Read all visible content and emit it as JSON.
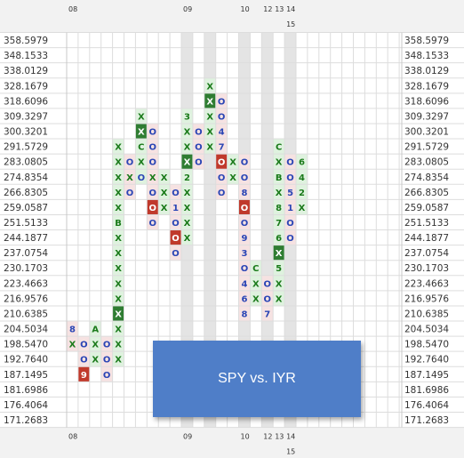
{
  "chart_data": {
    "type": "point-and-figure",
    "title": "SPY vs. IYR",
    "price_levels": [
      "358.5979",
      "348.1533",
      "338.0129",
      "328.1679",
      "318.6096",
      "309.3297",
      "300.3201",
      "291.5729",
      "283.0805",
      "274.8354",
      "266.8305",
      "259.0587",
      "251.5133",
      "244.1877",
      "237.0754",
      "230.1703",
      "223.4663",
      "216.9576",
      "210.6385",
      "204.5034",
      "198.5470",
      "192.7640",
      "187.1495",
      "181.6986",
      "176.4064",
      "171.2683"
    ],
    "x_period_labels": [
      {
        "label": "08",
        "col": 0,
        "row": 0
      },
      {
        "label": "09",
        "col": 10,
        "row": 0
      },
      {
        "label": "10",
        "col": 15,
        "row": 0
      },
      {
        "label": "12",
        "col": 17,
        "row": 0
      },
      {
        "label": "13",
        "col": 18,
        "row": 0
      },
      {
        "label": "14",
        "col": 19,
        "row": 0
      },
      {
        "label": "15",
        "col": 19,
        "row": 1
      }
    ],
    "shaded_columns": [
      10,
      12,
      15,
      17,
      19
    ],
    "columns": [
      {
        "type": "O",
        "top": "204.5034",
        "cells": [
          {
            "price": "204.5034",
            "label": "8"
          },
          {
            "price": "198.5470",
            "label": "X"
          }
        ]
      },
      {
        "type": "O",
        "top": "198.5470",
        "cells": [
          {
            "price": "198.5470",
            "label": "O"
          },
          {
            "price": "192.7640",
            "label": "O"
          },
          {
            "price": "187.1495",
            "label": "9",
            "highlight": "red"
          }
        ]
      },
      {
        "type": "X",
        "top": "204.5034",
        "cells": [
          {
            "price": "204.5034",
            "label": "A"
          },
          {
            "price": "198.5470",
            "label": "X"
          },
          {
            "price": "192.7640",
            "label": "X"
          }
        ]
      },
      {
        "type": "O",
        "top": "198.5470",
        "cells": [
          {
            "price": "198.5470",
            "label": "O"
          },
          {
            "price": "192.7640",
            "label": "O"
          },
          {
            "price": "187.1495",
            "label": "O"
          }
        ]
      },
      {
        "type": "X",
        "top": "291.5729",
        "cells": [
          {
            "price": "291.5729",
            "label": "X"
          },
          {
            "price": "283.0805",
            "label": "X"
          },
          {
            "price": "274.8354",
            "label": "X"
          },
          {
            "price": "266.8305",
            "label": "X"
          },
          {
            "price": "259.0587",
            "label": "X"
          },
          {
            "price": "251.5133",
            "label": "B"
          },
          {
            "price": "244.1877",
            "label": "X"
          },
          {
            "price": "237.0754",
            "label": "X"
          },
          {
            "price": "230.1703",
            "label": "X"
          },
          {
            "price": "223.4663",
            "label": "X"
          },
          {
            "price": "216.9576",
            "label": "X"
          },
          {
            "price": "210.6385",
            "label": "X",
            "highlight": "green"
          },
          {
            "price": "204.5034",
            "label": "X"
          },
          {
            "price": "198.5470",
            "label": "X"
          },
          {
            "price": "192.7640",
            "label": "X"
          }
        ]
      },
      {
        "type": "O",
        "top": "283.0805",
        "cells": [
          {
            "price": "283.0805",
            "label": "O"
          },
          {
            "price": "274.8354",
            "label": "X"
          },
          {
            "price": "266.8305",
            "label": "O"
          }
        ]
      },
      {
        "type": "X",
        "top": "309.3297",
        "cells": [
          {
            "price": "309.3297",
            "label": "X"
          },
          {
            "price": "300.3201",
            "label": "X",
            "highlight": "green"
          },
          {
            "price": "291.5729",
            "label": "C"
          },
          {
            "price": "283.0805",
            "label": "X"
          },
          {
            "price": "274.8354",
            "label": "O"
          }
        ]
      },
      {
        "type": "O",
        "top": "300.3201",
        "cells": [
          {
            "price": "300.3201",
            "label": "O"
          },
          {
            "price": "291.5729",
            "label": "O"
          },
          {
            "price": "283.0805",
            "label": "O"
          },
          {
            "price": "274.8354",
            "label": "X"
          },
          {
            "price": "266.8305",
            "label": "O"
          },
          {
            "price": "259.0587",
            "label": "O",
            "highlight": "red"
          },
          {
            "price": "251.5133",
            "label": "O"
          }
        ]
      },
      {
        "type": "X",
        "top": "274.8354",
        "cells": [
          {
            "price": "274.8354",
            "label": "X"
          },
          {
            "price": "266.8305",
            "label": "X"
          },
          {
            "price": "259.0587",
            "label": "X"
          }
        ]
      },
      {
        "type": "O",
        "top": "266.8305",
        "cells": [
          {
            "price": "266.8305",
            "label": "O"
          },
          {
            "price": "259.0587",
            "label": "1"
          },
          {
            "price": "251.5133",
            "label": "O"
          },
          {
            "price": "244.1877",
            "label": "O",
            "highlight": "red"
          },
          {
            "price": "237.0754",
            "label": "O"
          }
        ]
      },
      {
        "type": "X",
        "top": "309.3297",
        "cells": [
          {
            "price": "309.3297",
            "label": "3"
          },
          {
            "price": "300.3201",
            "label": "X"
          },
          {
            "price": "291.5729",
            "label": "X"
          },
          {
            "price": "283.0805",
            "label": "X",
            "highlight": "green"
          },
          {
            "price": "274.8354",
            "label": "2"
          },
          {
            "price": "266.8305",
            "label": "X"
          },
          {
            "price": "259.0587",
            "label": "X"
          },
          {
            "price": "251.5133",
            "label": "X"
          },
          {
            "price": "244.1877",
            "label": "X"
          }
        ]
      },
      {
        "type": "O",
        "top": "300.3201",
        "cells": [
          {
            "price": "300.3201",
            "label": "O"
          },
          {
            "price": "291.5729",
            "label": "O"
          },
          {
            "price": "283.0805",
            "label": "O"
          }
        ]
      },
      {
        "type": "X",
        "top": "328.1679",
        "cells": [
          {
            "price": "328.1679",
            "label": "X"
          },
          {
            "price": "318.6096",
            "label": "X",
            "highlight": "green"
          },
          {
            "price": "309.3297",
            "label": "X"
          },
          {
            "price": "300.3201",
            "label": "X"
          },
          {
            "price": "291.5729",
            "label": "X"
          }
        ]
      },
      {
        "type": "O",
        "top": "318.6096",
        "cells": [
          {
            "price": "318.6096",
            "label": "O"
          },
          {
            "price": "309.3297",
            "label": "O"
          },
          {
            "price": "300.3201",
            "label": "4"
          },
          {
            "price": "291.5729",
            "label": "7"
          },
          {
            "price": "283.0805",
            "label": "O",
            "highlight": "red"
          },
          {
            "price": "274.8354",
            "label": "O"
          },
          {
            "price": "266.8305",
            "label": "O"
          }
        ]
      },
      {
        "type": "X",
        "top": "283.0805",
        "cells": [
          {
            "price": "283.0805",
            "label": "X"
          },
          {
            "price": "274.8354",
            "label": "X"
          }
        ]
      },
      {
        "type": "O",
        "top": "283.0805",
        "cells": [
          {
            "price": "283.0805",
            "label": "O"
          },
          {
            "price": "274.8354",
            "label": "O"
          },
          {
            "price": "266.8305",
            "label": "8"
          },
          {
            "price": "259.0587",
            "label": "O",
            "highlight": "red"
          },
          {
            "price": "251.5133",
            "label": "O"
          },
          {
            "price": "244.1877",
            "label": "9"
          },
          {
            "price": "237.0754",
            "label": "3"
          },
          {
            "price": "230.1703",
            "label": "O"
          },
          {
            "price": "223.4663",
            "label": "4"
          },
          {
            "price": "216.9576",
            "label": "6"
          },
          {
            "price": "210.6385",
            "label": "8"
          }
        ]
      },
      {
        "type": "X",
        "top": "230.1703",
        "cells": [
          {
            "price": "230.1703",
            "label": "C"
          },
          {
            "price": "223.4663",
            "label": "X"
          },
          {
            "price": "216.9576",
            "label": "X"
          }
        ]
      },
      {
        "type": "O",
        "top": "223.4663",
        "cells": [
          {
            "price": "223.4663",
            "label": "O"
          },
          {
            "price": "216.9576",
            "label": "O"
          },
          {
            "price": "210.6385",
            "label": "7"
          }
        ]
      },
      {
        "type": "X",
        "top": "291.5729",
        "cells": [
          {
            "price": "291.5729",
            "label": "C"
          },
          {
            "price": "283.0805",
            "label": "X"
          },
          {
            "price": "274.8354",
            "label": "B"
          },
          {
            "price": "266.8305",
            "label": "X"
          },
          {
            "price": "259.0587",
            "label": "8"
          },
          {
            "price": "251.5133",
            "label": "7"
          },
          {
            "price": "244.1877",
            "label": "6"
          },
          {
            "price": "237.0754",
            "label": "X",
            "highlight": "green"
          },
          {
            "price": "230.1703",
            "label": "5"
          },
          {
            "price": "223.4663",
            "label": "X"
          },
          {
            "price": "216.9576",
            "label": "X"
          }
        ]
      },
      {
        "type": "O",
        "top": "283.0805",
        "cells": [
          {
            "price": "283.0805",
            "label": "O"
          },
          {
            "price": "274.8354",
            "label": "O"
          },
          {
            "price": "266.8305",
            "label": "5"
          },
          {
            "price": "259.0587",
            "label": "1"
          },
          {
            "price": "251.5133",
            "label": "O"
          },
          {
            "price": "244.1877",
            "label": "O"
          }
        ]
      },
      {
        "type": "X",
        "top": "283.0805",
        "cells": [
          {
            "price": "283.0805",
            "label": "6"
          },
          {
            "price": "274.8354",
            "label": "4"
          },
          {
            "price": "266.8305",
            "label": "2"
          },
          {
            "price": "259.0587",
            "label": "X"
          }
        ]
      }
    ],
    "colors": {
      "x_mark": "#1a7a1a",
      "o_mark": "#2a45b5",
      "x_column_bg": "#dff2df",
      "o_column_bg": "#f6e2e2",
      "green_highlight": "#2f7d32",
      "red_highlight": "#c0392b",
      "shaded_column": "#e4e4e4",
      "grid": "#dddddd",
      "legend_box": "#4f7ec8"
    },
    "legend": {
      "text": "SPY vs. IYR",
      "placement": "bottom-center"
    }
  }
}
